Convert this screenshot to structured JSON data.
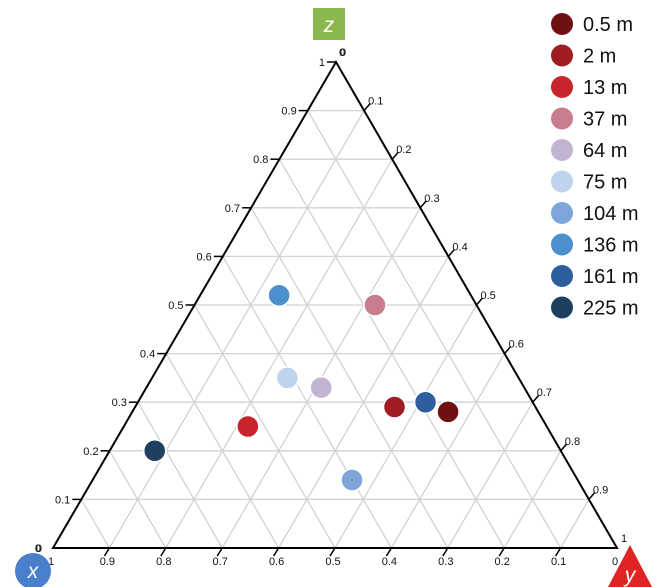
{
  "chart_data": {
    "type": "scatter",
    "subtype": "ternary",
    "axes": {
      "z": {
        "label": "z",
        "color": "#8ab84f",
        "ticks": [
          "0.1",
          "0.2",
          "0.3",
          "0.4",
          "0.5",
          "0.6",
          "0.7",
          "0.8",
          "0.9",
          "1"
        ]
      },
      "y": {
        "label": "y",
        "color": "#e02424",
        "ticks": [
          "0",
          "0.1",
          "0.2",
          "0.3",
          "0.4",
          "0.5",
          "0.6",
          "0.7",
          "0.8",
          "0.9",
          "1"
        ]
      },
      "x": {
        "label": "x",
        "color": "#4a7fcb",
        "ticks": [
          "0",
          "1",
          "0.9",
          "0.8",
          "0.7",
          "0.6",
          "0.5",
          "0.4",
          "0.3",
          "0.2",
          "0.1",
          "0"
        ]
      }
    },
    "z_ticks_left": [
      "0",
      "0.1",
      "0.2",
      "0.3",
      "0.4",
      "0.5",
      "0.6",
      "0.7",
      "0.8",
      "0.9",
      "1"
    ],
    "y_ticks_right": [
      "0",
      "0.1",
      "0.2",
      "0.3",
      "0.4",
      "0.5",
      "0.6",
      "0.7",
      "0.8",
      "0.9",
      "1"
    ],
    "x_ticks_bottom": [
      "1",
      "0.9",
      "0.8",
      "0.7",
      "0.6",
      "0.5",
      "0.4",
      "0.3",
      "0.2",
      "0.1",
      "0"
    ],
    "grid": true,
    "legend_position": "top-right",
    "series": [
      {
        "name": "0.5 m",
        "color": "#6e0f12",
        "x": 0.16,
        "y": 0.56,
        "z": 0.28
      },
      {
        "name": "2 m",
        "color": "#9e1c22",
        "x": 0.25,
        "y": 0.46,
        "z": 0.29
      },
      {
        "name": "13 m",
        "color": "#c8242c",
        "x": 0.53,
        "y": 0.22,
        "z": 0.25
      },
      {
        "name": "37 m",
        "color": "#c97d8c",
        "x": 0.18,
        "y": 0.32,
        "z": 0.5
      },
      {
        "name": "64 m",
        "color": "#c3b3d2",
        "x": 0.36,
        "y": 0.31,
        "z": 0.33
      },
      {
        "name": "75 m",
        "color": "#bfd3ee",
        "x": 0.41,
        "y": 0.24,
        "z": 0.35
      },
      {
        "name": "104 m",
        "color": "#7ea5da",
        "x": 0.4,
        "y": 0.46,
        "z": 0.14
      },
      {
        "name": "136 m",
        "color": "#4b90cc",
        "x": 0.34,
        "y": 0.14,
        "z": 0.52
      },
      {
        "name": "161 m",
        "color": "#2f5e9e",
        "x": 0.19,
        "y": 0.51,
        "z": 0.3
      },
      {
        "name": "225 m",
        "color": "#1f3f60",
        "x": 0.72,
        "y": 0.08,
        "z": 0.2
      }
    ]
  }
}
